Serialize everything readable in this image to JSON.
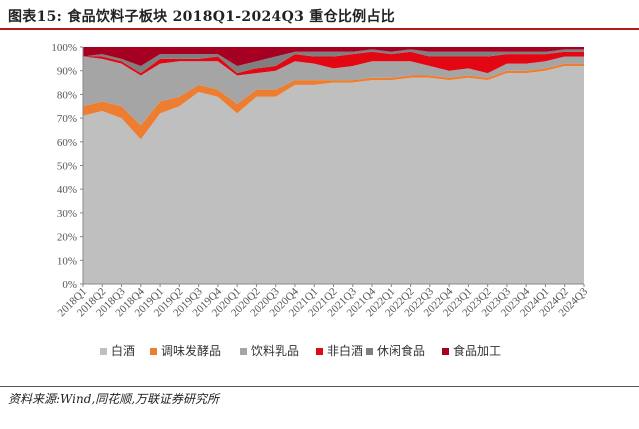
{
  "title": "图表15:  食品饮料子板块 2018Q1-2024Q3 重仓比例占比",
  "source": "资料来源:Wind,同花顺,万联证券研究所",
  "chart_data": {
    "type": "area",
    "stacked": true,
    "categories": [
      "2018Q1",
      "2018Q2",
      "2018Q3",
      "2018Q4",
      "2019Q1",
      "2019Q2",
      "2019Q3",
      "2019Q4",
      "2020Q1",
      "2020Q2",
      "2020Q3",
      "2020Q4",
      "2021Q1",
      "2021Q2",
      "2021Q3",
      "2021Q4",
      "2022Q1",
      "2022Q2",
      "2022Q3",
      "2022Q4",
      "2023Q1",
      "2023Q2",
      "2023Q3",
      "2023Q4",
      "2024Q1",
      "2024Q2",
      "2024Q3"
    ],
    "series": [
      {
        "name": "白酒",
        "color": "#bfbfbf",
        "values": [
          71,
          73,
          70,
          61,
          72,
          75,
          81,
          79,
          72,
          79,
          79,
          84,
          84,
          85,
          85,
          86,
          86,
          87,
          87,
          86,
          87,
          86,
          89,
          89,
          90,
          92,
          92
        ]
      },
      {
        "name": "调味发酵品",
        "color": "#ed7d31",
        "values": [
          4,
          4,
          5,
          6,
          5,
          4,
          3,
          3,
          4,
          3,
          3,
          2,
          2,
          1,
          1,
          1,
          1,
          1,
          1,
          1,
          1,
          1,
          1,
          1,
          1,
          1,
          1
        ]
      },
      {
        "name": "饮料乳品",
        "color": "#a5a5a5",
        "values": [
          21,
          18,
          18,
          21,
          16,
          15,
          10,
          12,
          12,
          7,
          8,
          8,
          7,
          5,
          6,
          7,
          7,
          6,
          4,
          3,
          3,
          2,
          3,
          3,
          3,
          3,
          3
        ]
      },
      {
        "name": "非白酒",
        "color": "#e30613",
        "values": [
          0,
          1,
          1,
          1,
          2,
          1,
          1,
          2,
          1,
          2,
          2,
          3,
          3,
          5,
          5,
          4,
          3,
          4,
          4,
          6,
          5,
          7,
          4,
          4,
          3,
          2,
          2
        ]
      },
      {
        "name": "休闲食品",
        "color": "#7f7f7f",
        "values": [
          0,
          1,
          1,
          3,
          2,
          2,
          2,
          1,
          3,
          3,
          4,
          1,
          2,
          2,
          1,
          1,
          1,
          1,
          2,
          2,
          2,
          2,
          1,
          1,
          1,
          1,
          1
        ]
      },
      {
        "name": "食品加工",
        "color": "#a50021",
        "values": [
          4,
          3,
          5,
          8,
          3,
          3,
          3,
          3,
          8,
          6,
          4,
          2,
          2,
          2,
          2,
          1,
          2,
          1,
          2,
          2,
          2,
          2,
          2,
          2,
          2,
          1,
          1
        ]
      }
    ],
    "ylim": [
      0,
      100
    ],
    "yticks": [
      "0%",
      "10%",
      "20%",
      "30%",
      "40%",
      "50%",
      "60%",
      "70%",
      "80%",
      "90%",
      "100%"
    ],
    "legend_position": "bottom",
    "grid": false
  }
}
